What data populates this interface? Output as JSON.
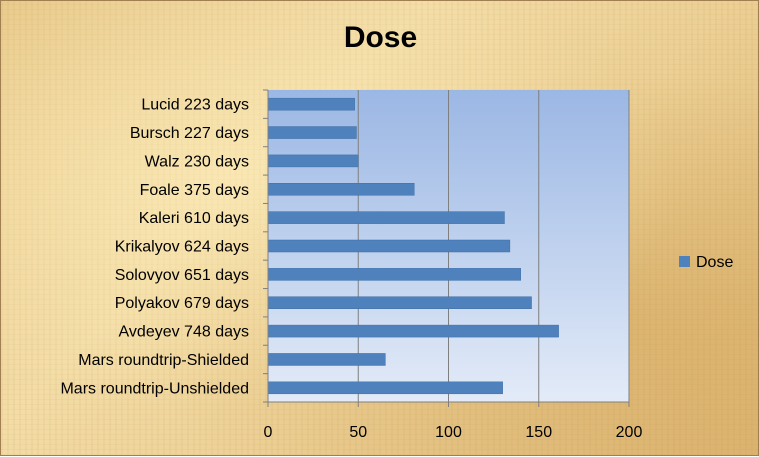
{
  "chart_data": {
    "type": "bar",
    "orientation": "horizontal",
    "title": "Dose",
    "categories": [
      "Lucid 223 days",
      "Bursch 227 days",
      "Walz 230 days",
      "Foale 375 days",
      "Kaleri 610 days",
      "Krikalyov 624 days",
      "Solovyov 651 days",
      "Polyakov 679 days",
      "Avdeyev 748 days",
      "Mars roundtrip-Shielded",
      "Mars roundtrip-Unshielded"
    ],
    "series": [
      {
        "name": "Dose",
        "color": "#4f81bd",
        "values": [
          48,
          49,
          50,
          81,
          131,
          134,
          140,
          146,
          161,
          65,
          130
        ]
      }
    ],
    "xlabel": "",
    "ylabel": "",
    "xlim": [
      0,
      200
    ],
    "xticks": [
      0,
      50,
      100,
      150,
      200
    ],
    "grid": "vertical",
    "legend": "right"
  }
}
